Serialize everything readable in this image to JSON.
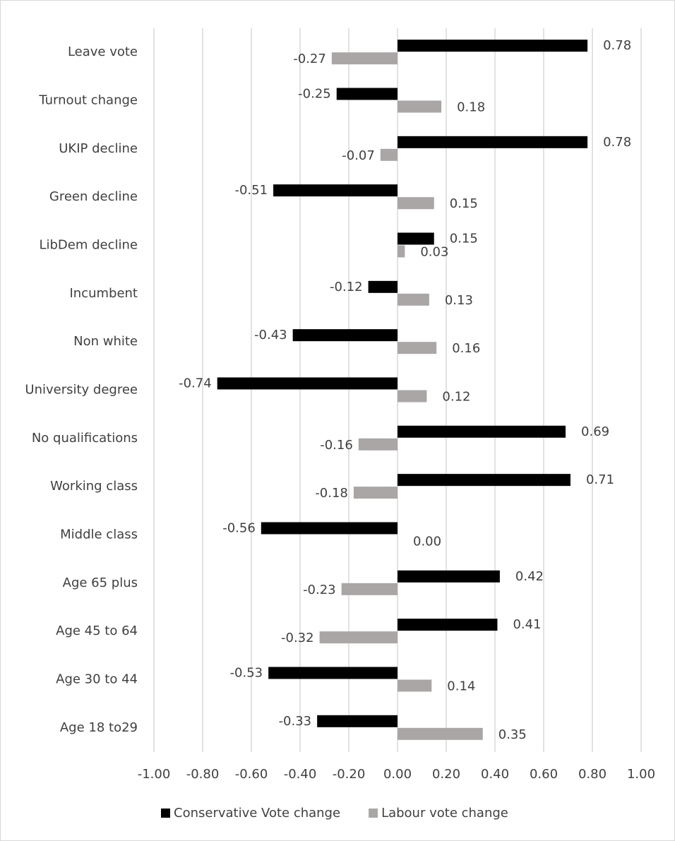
{
  "chart_data": {
    "type": "hbar",
    "categories": [
      "Leave vote",
      "Turnout change",
      "UKIP decline",
      "Green decline",
      "LibDem decline",
      "Incumbent",
      "Non white",
      "University degree",
      "No qualifications",
      "Working class",
      "Middle class",
      "Age 65 plus",
      "Age 45 to 64",
      "Age 30 to 44",
      "Age 18 to29"
    ],
    "series": [
      {
        "name": "Conservative Vote change",
        "color": "#000000",
        "values": [
          0.78,
          -0.25,
          0.78,
          -0.51,
          0.15,
          -0.12,
          -0.43,
          -0.74,
          0.69,
          0.71,
          -0.56,
          0.42,
          0.41,
          -0.53,
          -0.33
        ],
        "value_labels": [
          "0.78",
          "-0.25",
          "0.78",
          "-0.51",
          "0.15",
          "-0.12",
          "-0.43",
          "-0.74",
          "0.69",
          "0.71",
          "-0.56",
          "0.42",
          "0.41",
          "-0.53",
          "-0.33"
        ]
      },
      {
        "name": "Labour vote change",
        "color": "#aaa6a6",
        "values": [
          -0.27,
          0.18,
          -0.07,
          0.15,
          0.03,
          0.13,
          0.16,
          0.12,
          -0.16,
          -0.18,
          0.0,
          -0.23,
          -0.32,
          0.14,
          0.35
        ],
        "value_labels": [
          "-0.27",
          "0.18",
          "-0.07",
          "0.15",
          "0.03",
          "0.13",
          "0.16",
          "0.12",
          "-0.16",
          "-0.18",
          "0.00",
          "-0.23",
          "-0.32",
          "0.14",
          "0.35"
        ]
      }
    ],
    "xlim": [
      -1,
      1
    ],
    "xticks": [
      {
        "value": -1,
        "label": "-1.00"
      },
      {
        "value": -0.8,
        "label": "-0.80"
      },
      {
        "value": -0.6,
        "label": "-0.60"
      },
      {
        "value": -0.4,
        "label": "-0.40"
      },
      {
        "value": -0.2,
        "label": "-0.20"
      },
      {
        "value": 0,
        "label": "0.00"
      },
      {
        "value": 0.2,
        "label": "0.20"
      },
      {
        "value": 0.4,
        "label": "0.40"
      },
      {
        "value": 0.6,
        "label": "0.60"
      },
      {
        "value": 0.8,
        "label": "0.80"
      },
      {
        "value": 1,
        "label": "1.00"
      }
    ],
    "grid": true,
    "legend": "bottom"
  }
}
